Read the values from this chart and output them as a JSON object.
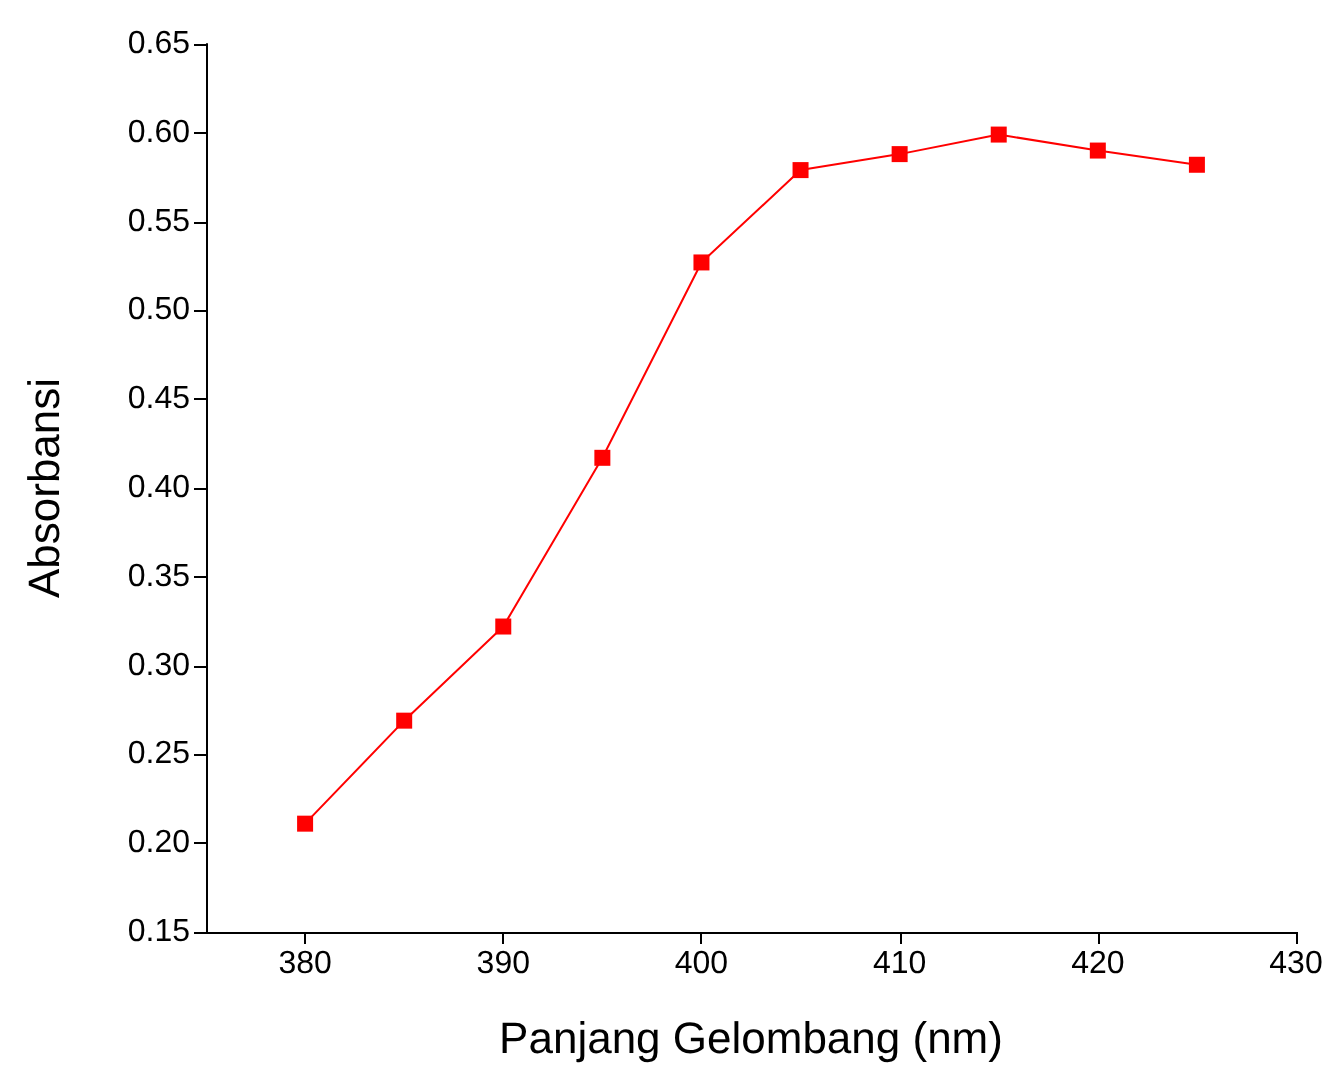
{
  "chart_data": {
    "type": "line",
    "xlabel": "Panjang Gelombang (nm)",
    "ylabel": "Absorbansi",
    "x": [
      380,
      385,
      390,
      395,
      400,
      405,
      410,
      415,
      420,
      425
    ],
    "series": [
      {
        "color": "#ff0000",
        "values": [
          0.211,
          0.269,
          0.322,
          0.417,
          0.527,
          0.579,
          0.588,
          0.599,
          0.59,
          0.582
        ]
      }
    ],
    "xlim": [
      375,
      430
    ],
    "xticks": [
      380,
      390,
      400,
      410,
      420,
      430
    ],
    "ylim": [
      0.15,
      0.65
    ],
    "yticks": [
      0.15,
      {
        "value": 0.2,
        "label": "0.20"
      },
      0.25,
      {
        "value": 0.3,
        "label": "0.30"
      },
      0.35,
      {
        "value": 0.4,
        "label": "0.40"
      },
      0.45,
      {
        "value": 0.5,
        "label": "0.50"
      },
      0.55,
      {
        "value": 0.6,
        "label": "0.60"
      },
      0.65
    ],
    "grid": false,
    "marker": "square",
    "line_style": "solid"
  }
}
